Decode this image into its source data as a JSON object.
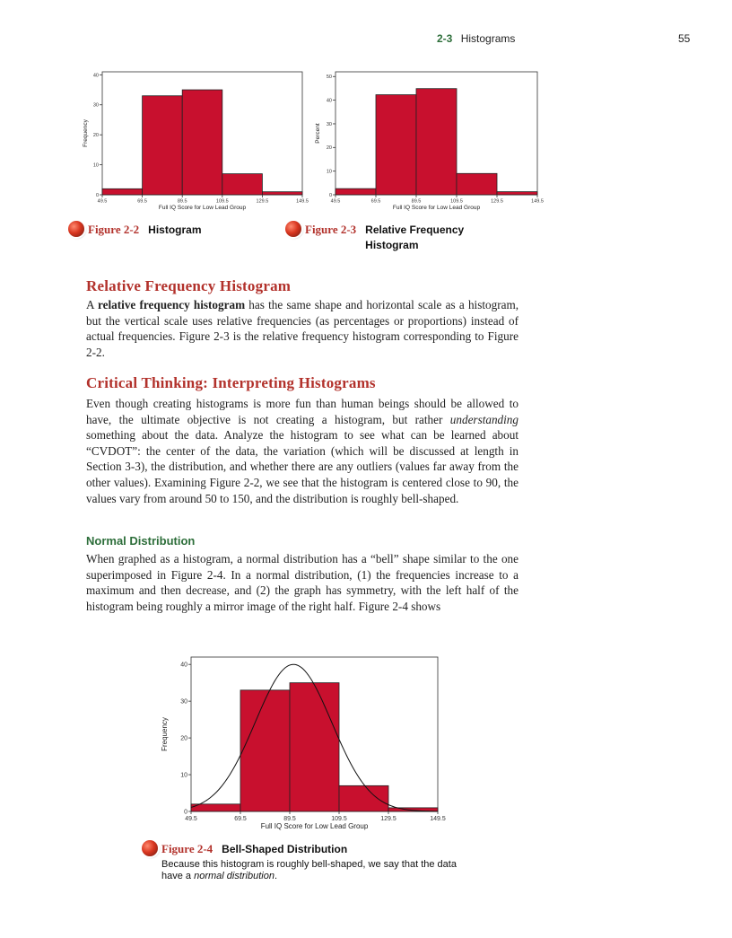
{
  "header": {
    "section_number": "2-3",
    "section_title": "Histograms",
    "page_number": "55"
  },
  "figure_2_2": {
    "number": "Figure 2-2",
    "title": "Histogram",
    "chart_data": {
      "type": "bar",
      "bin_edges": [
        49.5,
        69.5,
        89.5,
        109.5,
        129.5,
        149.5
      ],
      "x_tick_labels": [
        "49.5",
        "69.5",
        "89.5",
        "109.5",
        "129.5",
        "149.5"
      ],
      "values": [
        2,
        33,
        35,
        7,
        1
      ],
      "xlabel": "Full IQ Score for Low Lead Group",
      "ylabel": "Frequency",
      "ylim": [
        0,
        41
      ],
      "y_ticks": [
        0,
        10,
        20,
        30,
        40
      ],
      "color": "#c8102e"
    }
  },
  "figure_2_3": {
    "number": "Figure 2-3",
    "title": "Relative Frequency Histogram",
    "title_line1": "Relative Frequency",
    "title_line2": "Histogram",
    "chart_data": {
      "type": "bar",
      "bin_edges": [
        49.5,
        69.5,
        89.5,
        109.5,
        129.5,
        149.5
      ],
      "x_tick_labels": [
        "49.5",
        "69.5",
        "89.5",
        "109.5",
        "129.5",
        "149.5"
      ],
      "values": [
        2.6,
        42.3,
        44.9,
        9.0,
        1.3
      ],
      "xlabel": "Full IQ Score for Low Lead Group",
      "ylabel": "Percent",
      "ylim": [
        0,
        52
      ],
      "y_ticks": [
        0,
        10,
        20,
        30,
        40,
        50
      ],
      "color": "#c8102e"
    }
  },
  "section1": {
    "title": "Relative Frequency Histogram",
    "p1_a": "A ",
    "p1_bold": "relative frequency histogram",
    "p1_b": " has the same shape and horizontal scale as a histogram, but the vertical scale uses relative frequencies (as percentages or proportions) instead of actual frequencies. Figure 2-3 is the relative frequency histogram corresponding to Figure 2-2."
  },
  "section2": {
    "title": "Critical Thinking: Interpreting Histograms",
    "p_a": "Even though creating histograms is more fun than human beings should be allowed to have, the ultimate objective is not creating a histogram, but rather ",
    "p_italic": "understanding",
    "p_b": " something about the data. Analyze the histogram to see what can be learned about “CVDOT”: the center of the data, the variation (which will be discussed at length in Section 3-3), the distribution, and whether there are any outliers (values far away from the other values). Examining Figure 2-2, we see that the histogram is centered close to 90, the values vary from around 50 to 150, and the distribution is roughly bell-shaped."
  },
  "subsection": {
    "title": "Normal Distribution",
    "p": "When graphed as a histogram, a normal distribution has a “bell” shape similar to the one superimposed in Figure 2-4. In a normal distribution, (1) the frequencies increase to a maximum and then decrease, and (2) the graph has symmetry, with the left half of the histogram being roughly a mirror image of the right half. Figure 2-4 shows"
  },
  "figure_2_4": {
    "number": "Figure 2-4",
    "title": "Bell-Shaped Distribution",
    "desc_a": "Because this histogram is roughly bell-shaped, we say that the data have a ",
    "desc_italic": "normal distribution",
    "desc_b": ".",
    "chart_data": {
      "type": "bar",
      "bin_edges": [
        49.5,
        69.5,
        89.5,
        109.5,
        129.5,
        149.5
      ],
      "x_tick_labels": [
        "49.5",
        "69.5",
        "89.5",
        "109.5",
        "129.5",
        "149.5"
      ],
      "values": [
        2,
        33,
        35,
        7,
        1
      ],
      "xlabel": "Full IQ Score for Low Lead Group",
      "ylabel": "Frequency",
      "ylim": [
        0,
        42
      ],
      "y_ticks": [
        0,
        10,
        20,
        30,
        40
      ],
      "color": "#c8102e",
      "overlay": {
        "type": "normal-curve",
        "mean": 91,
        "sd": 15.5,
        "peak": 40
      }
    }
  }
}
